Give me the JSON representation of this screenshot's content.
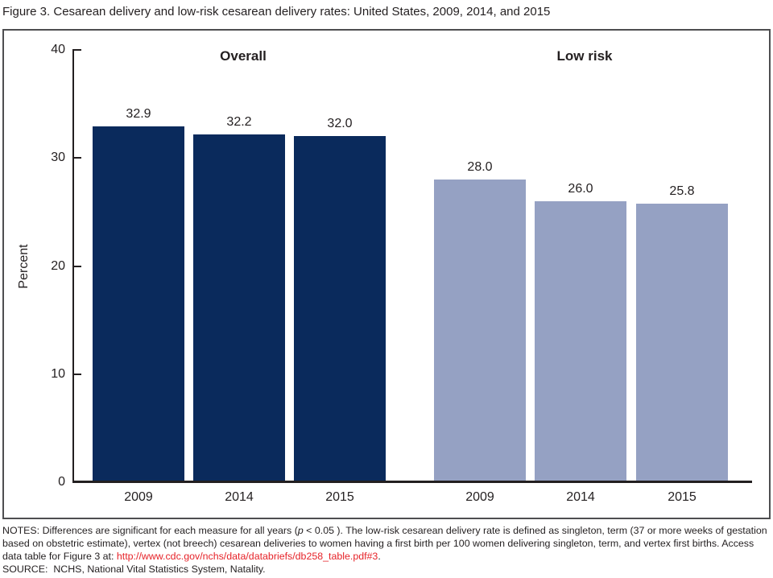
{
  "title": "Figure 3. Cesarean delivery and low-risk cesarean delivery rates: United States, 2009, 2014, and 2015",
  "chart_data": {
    "type": "bar",
    "title": "Figure 3. Cesarean delivery and low-risk cesarean delivery rates: United States, 2009, 2014, and 2015",
    "ylabel": "Percent",
    "xlabel": "",
    "ylim": [
      0,
      40
    ],
    "yticks": [
      0,
      10,
      20,
      30,
      40
    ],
    "grid": false,
    "legend_position": "none",
    "groups": [
      {
        "label": "Overall",
        "categories": [
          "2009",
          "2014",
          "2015"
        ],
        "values": [
          32.9,
          32.2,
          32.0
        ],
        "value_labels": [
          "32.9",
          "32.2",
          "32.0"
        ],
        "color": "#0a2a5c"
      },
      {
        "label": "Low risk",
        "categories": [
          "2009",
          "2014",
          "2015"
        ],
        "values": [
          28.0,
          26.0,
          25.8
        ],
        "value_labels": [
          "28.0",
          "26.0",
          "25.8"
        ],
        "color": "#95a1c3"
      }
    ]
  },
  "notes": {
    "seg1": "NOTES: Differences are significant for each measure for all years (",
    "p_italic": "p",
    "seg2": " < 0.05 ). The low-risk cesarean delivery rate is defined as singleton, term (37 or more weeks of gestation based on obstetric estimate), vertex (not breech) cesarean deliveries to women having a first birth per 100 women delivering singleton, term, and vertex first births. Access data table for Figure 3 at: ",
    "link_text": "http://www.cdc.gov/nchs/data/databriefs/db258_table.pdf#3",
    "seg3": ".",
    "source": "SOURCE:  NCHS, National Vital Statistics System, Natality."
  },
  "colors": {
    "overall_bar": "#0a2a5c",
    "low_risk_bar": "#95a1c3",
    "link": "#e62329",
    "axis": "#231f20",
    "frame_border": "#4e4e50"
  }
}
